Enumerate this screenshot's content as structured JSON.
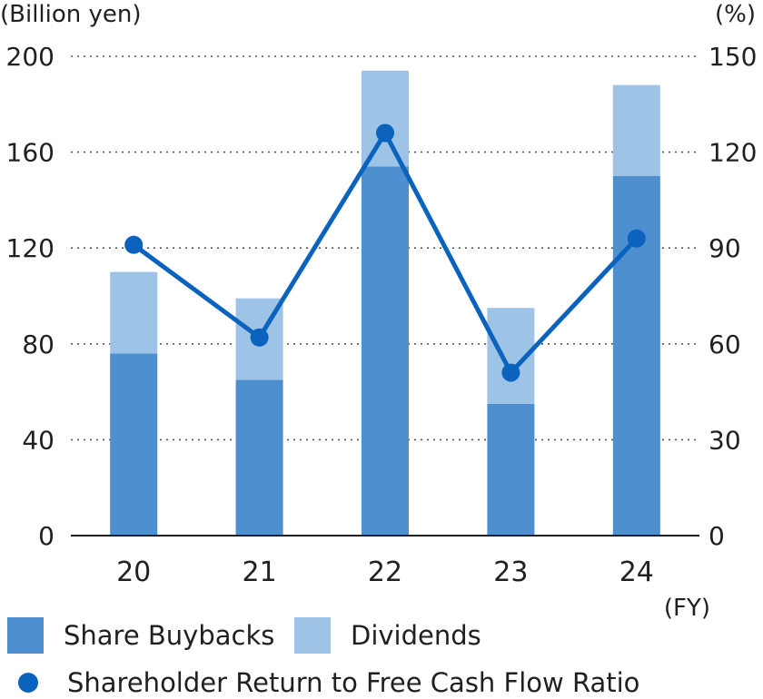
{
  "chart_data": {
    "type": "bar",
    "stacked": true,
    "left_axis": {
      "unit_label": "(Billion yen)",
      "ticks": [
        "0",
        "40",
        "80",
        "120",
        "160",
        "200"
      ],
      "range": [
        0,
        200
      ]
    },
    "right_axis": {
      "unit_label": "(%)",
      "ticks": [
        "0",
        "30",
        "60",
        "90",
        "120",
        "150"
      ],
      "range": [
        0,
        150
      ]
    },
    "x_unit_label": "(FY)",
    "categories": [
      "20",
      "21",
      "22",
      "23",
      "24"
    ],
    "series": [
      {
        "name": "Share Buybacks",
        "kind": "bar",
        "axis": "left",
        "color": "#4d8fcf",
        "values": [
          76,
          65,
          154,
          55,
          150
        ]
      },
      {
        "name": "Dividends",
        "kind": "bar",
        "axis": "left",
        "color": "#9dc3e6",
        "values": [
          34,
          34,
          40,
          40,
          38
        ]
      },
      {
        "name": "Shareholder Return to Free Cash Flow Ratio",
        "kind": "line",
        "axis": "right",
        "color": "#0b63bd",
        "values": [
          91,
          62,
          126,
          51,
          93
        ]
      }
    ],
    "grid": true,
    "legend_position": "bottom"
  },
  "legend": {
    "buybacks_label": "Share Buybacks",
    "dividends_label": "Dividends",
    "ratio_label": "Shareholder Return to Free Cash Flow Ratio"
  }
}
